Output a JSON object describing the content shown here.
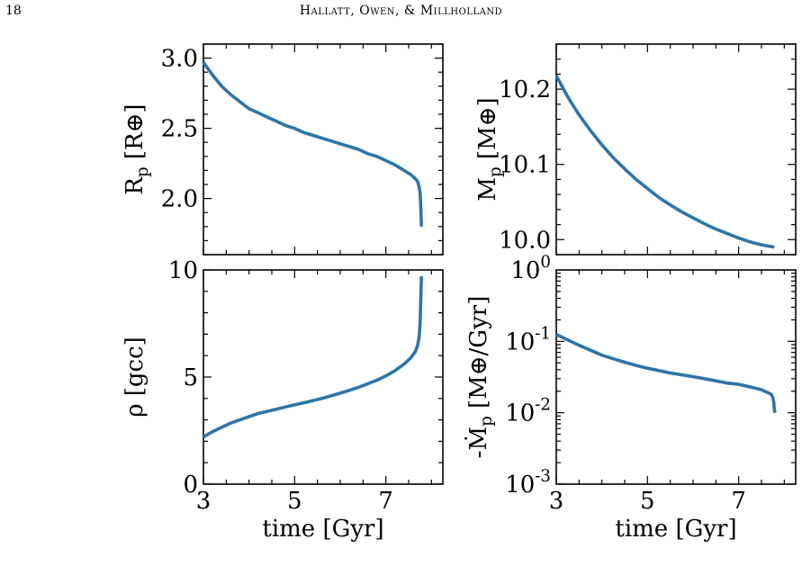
{
  "page": {
    "page_number": "18",
    "running_head": "Hallatt, Owen, & Millholland"
  },
  "style": {
    "line_color": "#2e75a8"
  },
  "chart_data": [
    {
      "type": "line",
      "id": "radius",
      "ylabel": "R_p [R⊕]",
      "xlabel": "",
      "xlim": [
        3,
        8.25
      ],
      "ylim": [
        1.6,
        3.1
      ],
      "xticks": [
        3,
        5,
        7
      ],
      "yticks": [
        2.0,
        2.5,
        3.0
      ],
      "ytick_labels": [
        "2.0",
        "2.5",
        "3.0"
      ],
      "show_xtick_labels": false,
      "series": [
        {
          "x": [
            3.0,
            3.2,
            3.4,
            3.6,
            3.8,
            4.0,
            4.2,
            4.4,
            4.6,
            4.8,
            5.0,
            5.2,
            5.4,
            5.6,
            5.8,
            6.0,
            6.2,
            6.4,
            6.6,
            6.8,
            7.0,
            7.2,
            7.4,
            7.55,
            7.65,
            7.7,
            7.73,
            7.75,
            7.76,
            7.77,
            7.78
          ],
          "y": [
            2.97,
            2.88,
            2.8,
            2.74,
            2.69,
            2.64,
            2.61,
            2.58,
            2.55,
            2.52,
            2.5,
            2.47,
            2.45,
            2.43,
            2.41,
            2.39,
            2.37,
            2.35,
            2.32,
            2.3,
            2.27,
            2.24,
            2.2,
            2.17,
            2.14,
            2.12,
            2.08,
            2.04,
            1.98,
            1.9,
            1.8
          ]
        }
      ]
    },
    {
      "type": "line",
      "id": "mass",
      "ylabel": "M_p [M⊕]",
      "xlabel": "",
      "xlim": [
        3,
        8.25
      ],
      "ylim": [
        9.98,
        10.26
      ],
      "xticks": [
        3,
        5,
        7
      ],
      "yticks": [
        10.0,
        10.1,
        10.2
      ],
      "ytick_labels": [
        "10.0",
        "10.1",
        "10.2"
      ],
      "show_xtick_labels": false,
      "series": [
        {
          "x": [
            3.0,
            3.25,
            3.5,
            3.75,
            4.0,
            4.25,
            4.5,
            4.75,
            5.0,
            5.25,
            5.5,
            5.75,
            6.0,
            6.25,
            6.5,
            6.75,
            7.0,
            7.25,
            7.5,
            7.78
          ],
          "y": [
            10.218,
            10.19,
            10.166,
            10.145,
            10.126,
            10.109,
            10.094,
            10.08,
            10.068,
            10.056,
            10.046,
            10.037,
            10.029,
            10.021,
            10.014,
            10.008,
            10.002,
            9.997,
            9.993,
            9.99
          ]
        }
      ]
    },
    {
      "type": "line",
      "id": "density",
      "ylabel": "ρ [gcc]",
      "xlabel": "time [Gyr]",
      "xlim": [
        3,
        8.25
      ],
      "ylim": [
        0,
        10
      ],
      "xticks": [
        3,
        5,
        7
      ],
      "yticks": [
        0,
        5,
        10
      ],
      "ytick_labels": [
        "0",
        "5",
        "10"
      ],
      "show_xtick_labels": true,
      "series": [
        {
          "x": [
            3.0,
            3.2,
            3.4,
            3.6,
            3.8,
            4.0,
            4.2,
            4.4,
            4.6,
            4.8,
            5.0,
            5.2,
            5.4,
            5.6,
            5.8,
            6.0,
            6.2,
            6.4,
            6.6,
            6.8,
            7.0,
            7.2,
            7.4,
            7.55,
            7.65,
            7.7,
            7.73,
            7.75,
            7.76,
            7.77,
            7.78
          ],
          "y": [
            2.2,
            2.45,
            2.65,
            2.85,
            3.0,
            3.15,
            3.3,
            3.4,
            3.5,
            3.6,
            3.7,
            3.8,
            3.9,
            4.0,
            4.12,
            4.25,
            4.38,
            4.52,
            4.68,
            4.85,
            5.05,
            5.3,
            5.6,
            5.9,
            6.2,
            6.5,
            6.9,
            7.5,
            8.2,
            9.0,
            9.7
          ]
        }
      ]
    },
    {
      "type": "line",
      "id": "mass-loss-rate",
      "ylabel": "-Ṁ_p [M⊕/Gyr]",
      "xlabel": "time [Gyr]",
      "xlim": [
        3,
        8.25
      ],
      "ylim": [
        0.001,
        1
      ],
      "yscale": "log",
      "xticks": [
        3,
        5,
        7
      ],
      "yticks": [
        0.001,
        0.01,
        0.1,
        1
      ],
      "ytick_labels": [
        "10^-3",
        "10^-2",
        "10^-1",
        "10^0"
      ],
      "show_xtick_labels": true,
      "series": [
        {
          "x": [
            3.0,
            3.25,
            3.5,
            3.75,
            4.0,
            4.25,
            4.5,
            4.75,
            5.0,
            5.25,
            5.5,
            5.75,
            6.0,
            6.25,
            6.5,
            6.75,
            7.0,
            7.25,
            7.5,
            7.65,
            7.72,
            7.75,
            7.77,
            7.78,
            7.8
          ],
          "y": [
            0.125,
            0.105,
            0.088,
            0.075,
            0.064,
            0.057,
            0.051,
            0.046,
            0.042,
            0.039,
            0.036,
            0.034,
            0.032,
            0.03,
            0.028,
            0.026,
            0.025,
            0.023,
            0.021,
            0.019,
            0.018,
            0.016,
            0.014,
            0.011,
            0.01
          ]
        }
      ]
    }
  ]
}
